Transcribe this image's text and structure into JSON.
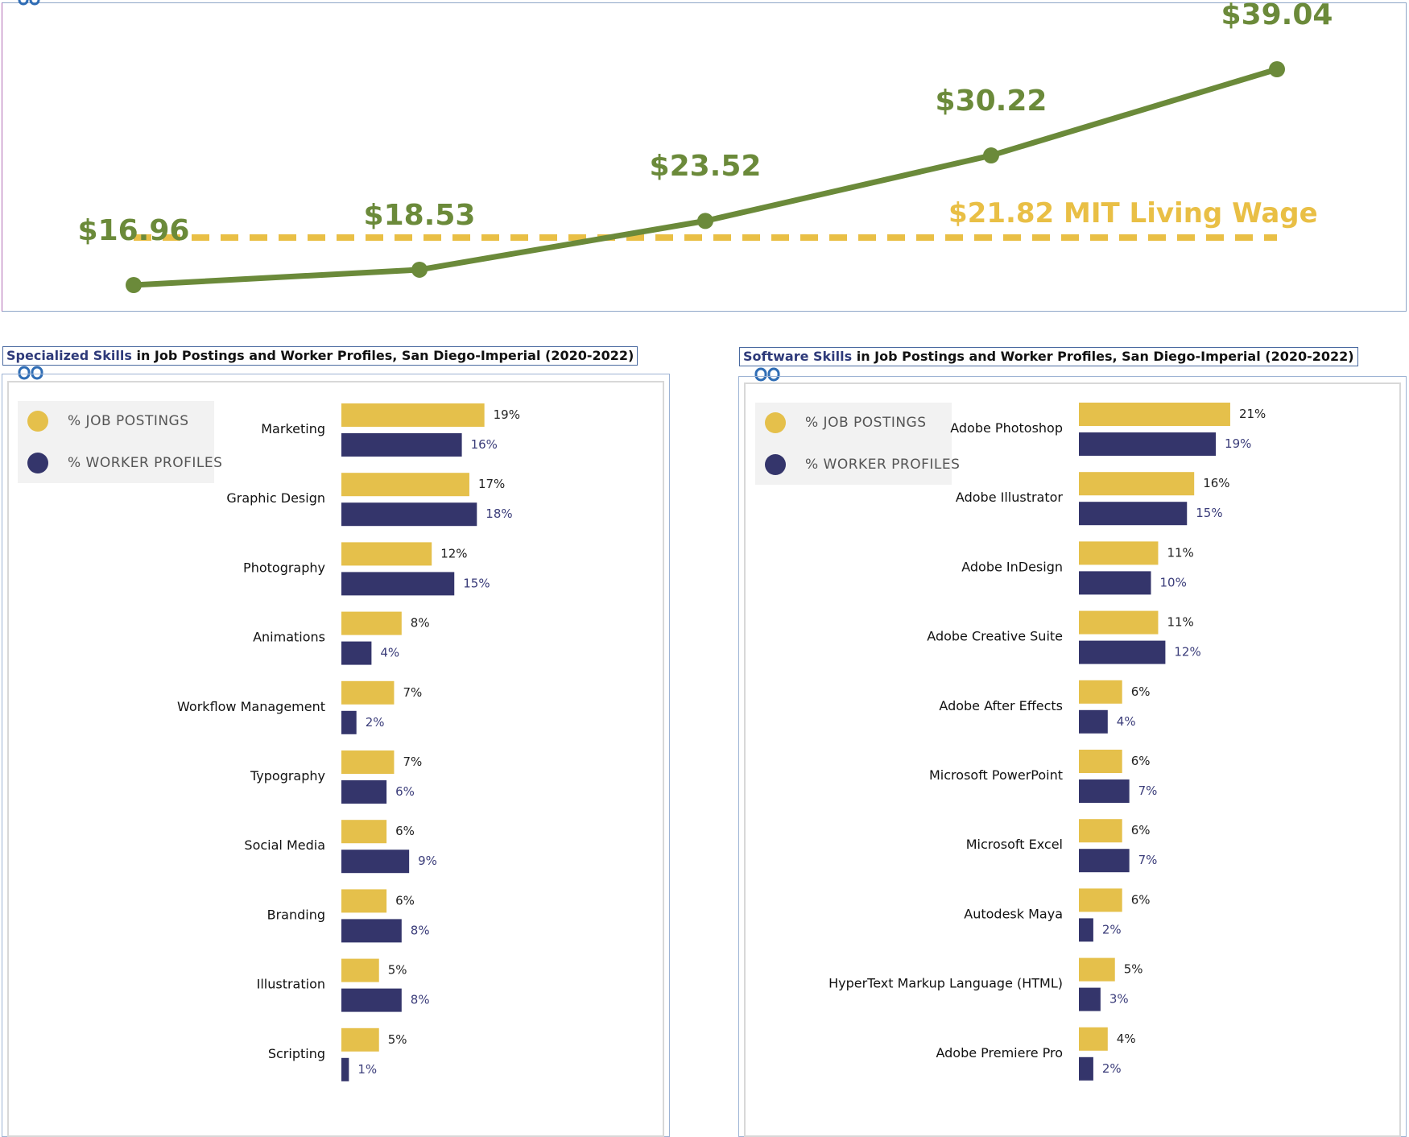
{
  "wage_chart": {
    "colors": {
      "line": "#6b8a3a",
      "living_wage": "#e9bf45"
    },
    "living_wage_label": "$21.82 MIT Living Wage",
    "chart_data": {
      "type": "line",
      "title": "",
      "xlabel": "",
      "ylabel": "",
      "x": [
        1,
        2,
        3,
        4,
        5
      ],
      "values": [
        16.96,
        18.53,
        23.52,
        30.22,
        39.04
      ],
      "value_labels": [
        "$16.96",
        "$18.53",
        "$23.52",
        "$30.22",
        "$39.04"
      ],
      "reference_line": {
        "value": 21.82,
        "label": "$21.82 MIT Living Wage"
      }
    }
  },
  "specialized_panel": {
    "title_highlight": "Specialized Skills",
    "title_rest": " in Job Postings and Worker Profiles, San Diego-Imperial (2020-2022)",
    "legend": {
      "job": "% JOB POSTINGS",
      "worker": "% WORKER PROFILES"
    },
    "chart_data": {
      "type": "bar",
      "orientation": "horizontal",
      "categories": [
        "Marketing",
        "Graphic Design",
        "Photography",
        "Animations",
        "Workflow Management",
        "Typography",
        "Social Media",
        "Branding",
        "Illustration",
        "Scripting"
      ],
      "series": [
        {
          "name": "% JOB POSTINGS",
          "color": "#e5c04b",
          "values": [
            19,
            17,
            12,
            8,
            7,
            7,
            6,
            6,
            5,
            5
          ]
        },
        {
          "name": "% WORKER PROFILES",
          "color": "#34356b",
          "values": [
            16,
            18,
            15,
            4,
            2,
            6,
            9,
            8,
            8,
            1
          ]
        }
      ],
      "unit": "%"
    }
  },
  "software_panel": {
    "title_highlight": "Software Skills",
    "title_rest": " in Job Postings and Worker Profiles, San Diego-Imperial (2020-2022)",
    "legend": {
      "job": "% JOB POSTINGS",
      "worker": "% WORKER PROFILES"
    },
    "chart_data": {
      "type": "bar",
      "orientation": "horizontal",
      "categories": [
        "Adobe Photoshop",
        "Adobe Illustrator",
        "Adobe InDesign",
        "Adobe Creative Suite",
        "Adobe After Effects",
        "Microsoft PowerPoint",
        "Microsoft Excel",
        "Autodesk Maya",
        "HyperText Markup Language (HTML)",
        "Adobe Premiere Pro"
      ],
      "series": [
        {
          "name": "% JOB POSTINGS",
          "color": "#e5c04b",
          "values": [
            21,
            16,
            11,
            11,
            6,
            6,
            6,
            6,
            5,
            4
          ]
        },
        {
          "name": "% WORKER PROFILES",
          "color": "#34356b",
          "values": [
            19,
            15,
            10,
            12,
            4,
            7,
            7,
            2,
            3,
            2
          ]
        }
      ],
      "unit": "%"
    }
  }
}
